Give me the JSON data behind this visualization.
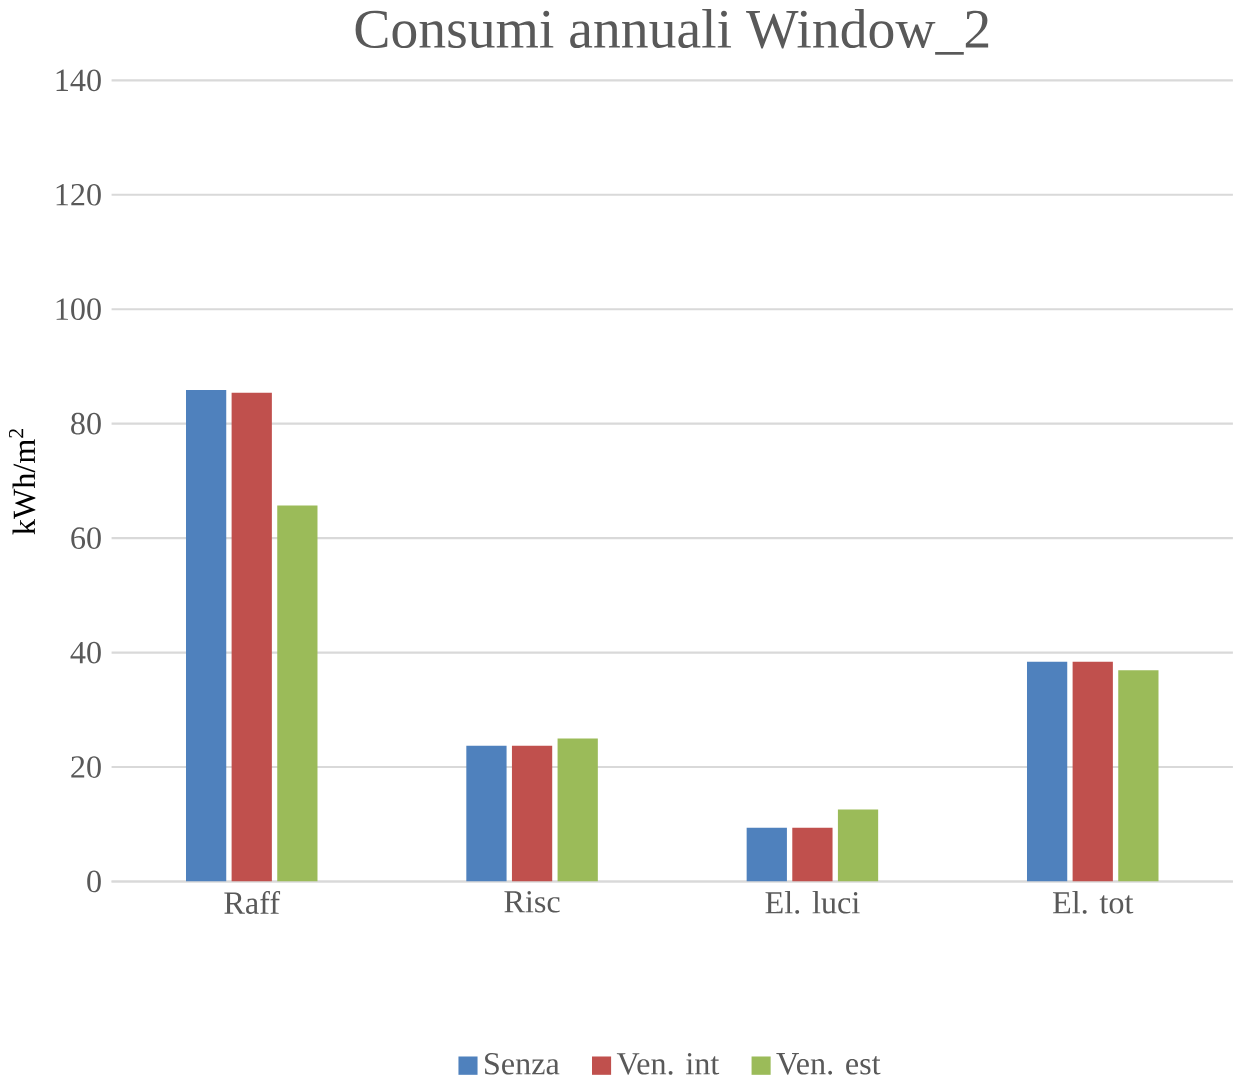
{
  "chart_data": {
    "type": "bar",
    "title": "Consumi annuali Window_2",
    "ylabel": "kWh/m$^{2}$",
    "categories": [
      "Raff",
      "Risc",
      "El. luci",
      "El. tot"
    ],
    "series": [
      {
        "name": "Senza",
        "color": "#4f81bd",
        "values": [
          85.9,
          23.7,
          9.4,
          38.4
        ]
      },
      {
        "name": "Ven. int",
        "color": "#c0504d",
        "values": [
          85.4,
          23.7,
          9.4,
          38.4
        ]
      },
      {
        "name": "Ven. est",
        "color": "#9bbb59",
        "values": [
          65.7,
          25.0,
          12.6,
          36.9
        ]
      }
    ],
    "ylim": [
      0,
      140
    ],
    "yticks": [
      0,
      20,
      40,
      60,
      80,
      100,
      120,
      140
    ],
    "grid": "y",
    "legend": "bottom"
  }
}
